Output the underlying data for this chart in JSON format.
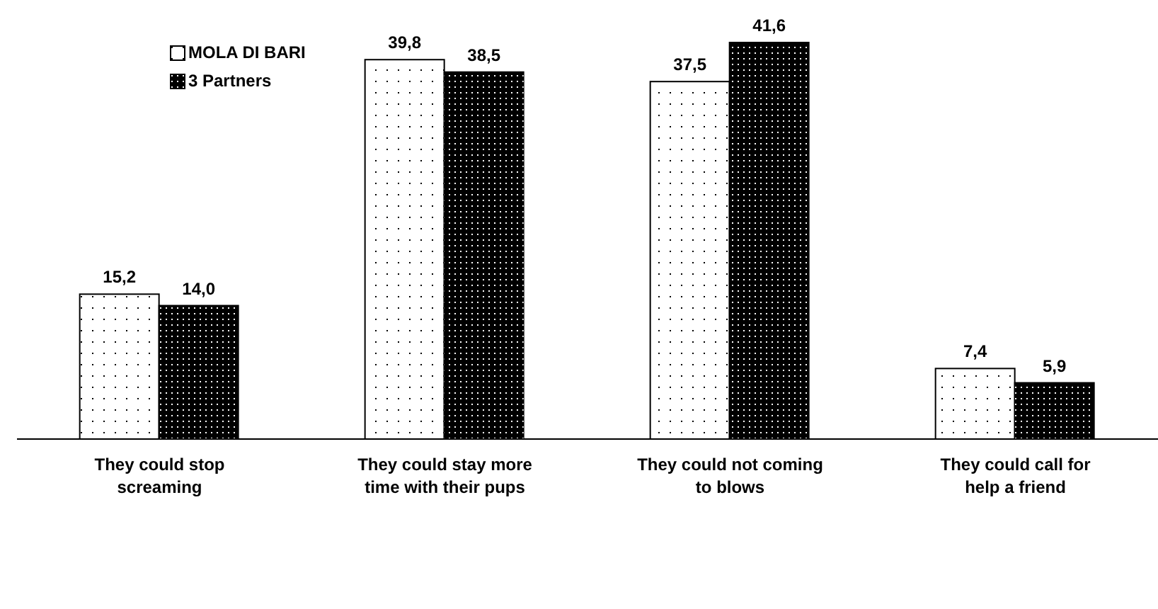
{
  "chart_data": {
    "type": "bar",
    "categories": [
      "They could stop screaming",
      "They could stay more time with their pups",
      "They could not coming to blows",
      "They could call for help a friend"
    ],
    "series": [
      {
        "name": "MOLA DI BARI",
        "color": "#ffffff",
        "values": [
          15.2,
          39.8,
          37.5,
          7.4
        ],
        "value_labels": [
          "15,2",
          "39,8",
          "37,5",
          "7,4"
        ]
      },
      {
        "name": "3 Partners",
        "color": "#000000",
        "values": [
          14.0,
          38.5,
          41.6,
          5.9
        ],
        "value_labels": [
          "14,0",
          "38,5",
          "41,6",
          "5,9"
        ]
      }
    ],
    "legend": "top left",
    "grid": false
  }
}
